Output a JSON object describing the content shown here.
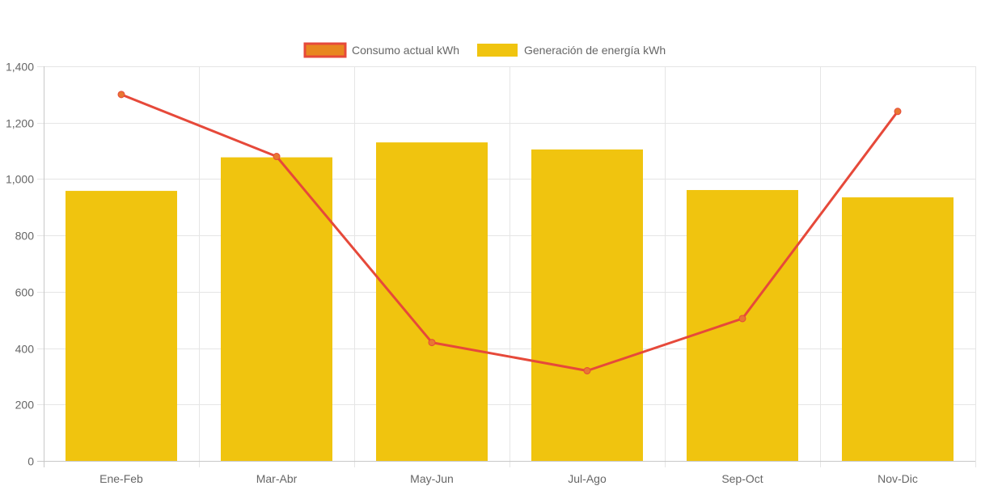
{
  "chart_data": {
    "type": "bar",
    "categories": [
      "Ene-Feb",
      "Mar-Abr",
      "May-Jun",
      "Jul-Ago",
      "Sep-Oct",
      "Nov-Dic"
    ],
    "series": [
      {
        "name": "Consumo actual kWh",
        "type": "line",
        "values": [
          1300,
          1080,
          420,
          320,
          505,
          1240
        ],
        "line_color": "#e6493a",
        "point_color": "#e87732",
        "legend_fill": "#e8861f",
        "legend_border": "#e6493a"
      },
      {
        "name": "Generación de energía kWh",
        "type": "bar",
        "values": [
          958,
          1077,
          1130,
          1105,
          961,
          935
        ],
        "color": "#f0c40f"
      }
    ],
    "yticks": [
      "0",
      "200",
      "400",
      "600",
      "800",
      "1,000",
      "1,200",
      "1,400"
    ],
    "ylim": [
      0,
      1400
    ],
    "ystep": 200,
    "grid": true,
    "legend_position": "top-center",
    "xlabel": "",
    "ylabel": "",
    "title": ""
  },
  "colors": {
    "grid": "#e5e5e5",
    "axis": "#c8c8c8",
    "text": "#666666"
  }
}
